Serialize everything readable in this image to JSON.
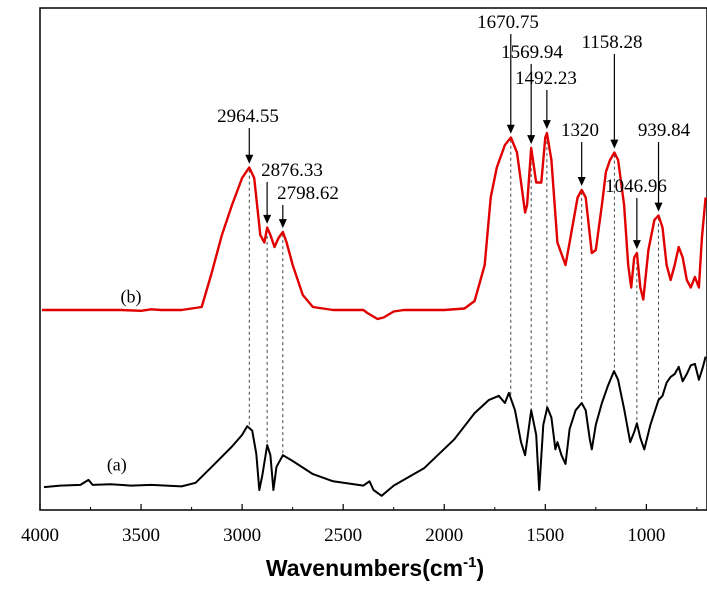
{
  "chart_data": {
    "type": "line",
    "title": "",
    "xlabel": "Wavenumbers(cm",
    "xlabel_superscript": "-1",
    "xlabel_close": ")",
    "ylabel": "",
    "xlim": [
      4000,
      700
    ],
    "x_reversed": true,
    "xticks": [
      {
        "value": 4000,
        "label": "4000"
      },
      {
        "value": 3500,
        "label": "3500"
      },
      {
        "value": 3000,
        "label": "3000"
      },
      {
        "value": 2500,
        "label": "2500"
      },
      {
        "value": 2000,
        "label": "2000"
      },
      {
        "value": 1500,
        "label": "1500"
      },
      {
        "value": 1000,
        "label": "1000"
      }
    ],
    "grid": false,
    "y_axis_ticks": false,
    "series": [
      {
        "name": "(a)",
        "color": "#000000",
        "points": [
          [
            3980,
            0.02
          ],
          [
            3900,
            0.03
          ],
          [
            3800,
            0.035
          ],
          [
            3760,
            0.07
          ],
          [
            3740,
            0.035
          ],
          [
            3650,
            0.04
          ],
          [
            3550,
            0.03
          ],
          [
            3450,
            0.035
          ],
          [
            3300,
            0.025
          ],
          [
            3230,
            0.05
          ],
          [
            3150,
            0.16
          ],
          [
            3050,
            0.3
          ],
          [
            3000,
            0.38
          ],
          [
            2975,
            0.44
          ],
          [
            2950,
            0.41
          ],
          [
            2930,
            0.25
          ],
          [
            2915,
            0.0
          ],
          [
            2900,
            0.1
          ],
          [
            2876,
            0.31
          ],
          [
            2860,
            0.24
          ],
          [
            2845,
            0.0
          ],
          [
            2830,
            0.16
          ],
          [
            2798,
            0.24
          ],
          [
            2750,
            0.2
          ],
          [
            2650,
            0.11
          ],
          [
            2550,
            0.06
          ],
          [
            2400,
            0.03
          ],
          [
            2370,
            0.06
          ],
          [
            2350,
            0.0
          ],
          [
            2310,
            -0.04
          ],
          [
            2250,
            0.03
          ],
          [
            2100,
            0.15
          ],
          [
            1950,
            0.35
          ],
          [
            1850,
            0.53
          ],
          [
            1780,
            0.62
          ],
          [
            1730,
            0.65
          ],
          [
            1700,
            0.6
          ],
          [
            1680,
            0.67
          ],
          [
            1650,
            0.55
          ],
          [
            1620,
            0.33
          ],
          [
            1600,
            0.24
          ],
          [
            1570,
            0.55
          ],
          [
            1545,
            0.38
          ],
          [
            1530,
            0.0
          ],
          [
            1510,
            0.45
          ],
          [
            1490,
            0.57
          ],
          [
            1470,
            0.5
          ],
          [
            1450,
            0.28
          ],
          [
            1440,
            0.33
          ],
          [
            1420,
            0.24
          ],
          [
            1400,
            0.18
          ],
          [
            1380,
            0.42
          ],
          [
            1350,
            0.55
          ],
          [
            1320,
            0.6
          ],
          [
            1300,
            0.55
          ],
          [
            1280,
            0.35
          ],
          [
            1270,
            0.28
          ],
          [
            1250,
            0.45
          ],
          [
            1220,
            0.6
          ],
          [
            1190,
            0.72
          ],
          [
            1160,
            0.82
          ],
          [
            1140,
            0.76
          ],
          [
            1110,
            0.56
          ],
          [
            1080,
            0.33
          ],
          [
            1060,
            0.4
          ],
          [
            1047,
            0.46
          ],
          [
            1030,
            0.36
          ],
          [
            1010,
            0.28
          ],
          [
            980,
            0.45
          ],
          [
            940,
            0.62
          ],
          [
            920,
            0.65
          ],
          [
            900,
            0.74
          ],
          [
            880,
            0.78
          ],
          [
            860,
            0.8
          ],
          [
            840,
            0.85
          ],
          [
            820,
            0.75
          ],
          [
            800,
            0.8
          ],
          [
            780,
            0.86
          ],
          [
            760,
            0.87
          ],
          [
            740,
            0.76
          ],
          [
            720,
            0.85
          ],
          [
            707,
            0.92
          ]
        ]
      },
      {
        "name": "(b)",
        "color": "#e00000",
        "points": [
          [
            3990,
            0.0
          ],
          [
            3900,
            0.0
          ],
          [
            3800,
            0.0
          ],
          [
            3700,
            0.0
          ],
          [
            3600,
            0.0
          ],
          [
            3500,
            -0.005
          ],
          [
            3450,
            0.005
          ],
          [
            3400,
            0.0
          ],
          [
            3300,
            0.0
          ],
          [
            3200,
            0.02
          ],
          [
            3150,
            0.25
          ],
          [
            3100,
            0.5
          ],
          [
            3050,
            0.7
          ],
          [
            3000,
            0.88
          ],
          [
            2965,
            0.95
          ],
          [
            2940,
            0.88
          ],
          [
            2910,
            0.5
          ],
          [
            2890,
            0.45
          ],
          [
            2876,
            0.55
          ],
          [
            2860,
            0.5
          ],
          [
            2840,
            0.42
          ],
          [
            2820,
            0.48
          ],
          [
            2798,
            0.52
          ],
          [
            2780,
            0.45
          ],
          [
            2750,
            0.3
          ],
          [
            2700,
            0.1
          ],
          [
            2650,
            0.02
          ],
          [
            2550,
            0.0
          ],
          [
            2400,
            0.0
          ],
          [
            2380,
            -0.02
          ],
          [
            2330,
            -0.06
          ],
          [
            2300,
            -0.05
          ],
          [
            2250,
            -0.01
          ],
          [
            2200,
            0.0
          ],
          [
            2000,
            0.0
          ],
          [
            1900,
            0.01
          ],
          [
            1850,
            0.06
          ],
          [
            1800,
            0.3
          ],
          [
            1770,
            0.75
          ],
          [
            1740,
            0.95
          ],
          [
            1700,
            1.1
          ],
          [
            1670,
            1.15
          ],
          [
            1640,
            1.05
          ],
          [
            1600,
            0.65
          ],
          [
            1590,
            0.7
          ],
          [
            1570,
            1.08
          ],
          [
            1545,
            0.85
          ],
          [
            1520,
            0.85
          ],
          [
            1500,
            1.15
          ],
          [
            1492,
            1.18
          ],
          [
            1470,
            1.0
          ],
          [
            1440,
            0.45
          ],
          [
            1400,
            0.3
          ],
          [
            1380,
            0.45
          ],
          [
            1340,
            0.75
          ],
          [
            1320,
            0.8
          ],
          [
            1300,
            0.75
          ],
          [
            1270,
            0.38
          ],
          [
            1250,
            0.4
          ],
          [
            1220,
            0.7
          ],
          [
            1200,
            0.92
          ],
          [
            1180,
            1.0
          ],
          [
            1158,
            1.05
          ],
          [
            1140,
            1.0
          ],
          [
            1110,
            0.7
          ],
          [
            1090,
            0.3
          ],
          [
            1075,
            0.15
          ],
          [
            1060,
            0.35
          ],
          [
            1047,
            0.38
          ],
          [
            1030,
            0.15
          ],
          [
            1015,
            0.07
          ],
          [
            990,
            0.4
          ],
          [
            960,
            0.6
          ],
          [
            940,
            0.63
          ],
          [
            920,
            0.55
          ],
          [
            900,
            0.3
          ],
          [
            880,
            0.2
          ],
          [
            860,
            0.3
          ],
          [
            840,
            0.42
          ],
          [
            820,
            0.35
          ],
          [
            800,
            0.2
          ],
          [
            780,
            0.15
          ],
          [
            760,
            0.22
          ],
          [
            740,
            0.15
          ],
          [
            725,
            0.48
          ],
          [
            707,
            0.75
          ]
        ]
      }
    ],
    "annotations": [
      {
        "label": "2964.55",
        "x": 2964.55
      },
      {
        "label": "2876.33",
        "x": 2876.33
      },
      {
        "label": "2798.62",
        "x": 2798.62
      },
      {
        "label": "1670.75",
        "x": 1670.75
      },
      {
        "label": "1569.94",
        "x": 1569.94
      },
      {
        "label": "1492.23",
        "x": 1492.23
      },
      {
        "label": "1320",
        "x": 1320
      },
      {
        "label": "1158.28",
        "x": 1158.28
      },
      {
        "label": "1046.96",
        "x": 1046.96
      },
      {
        "label": "939.84",
        "x": 939.84
      }
    ]
  }
}
